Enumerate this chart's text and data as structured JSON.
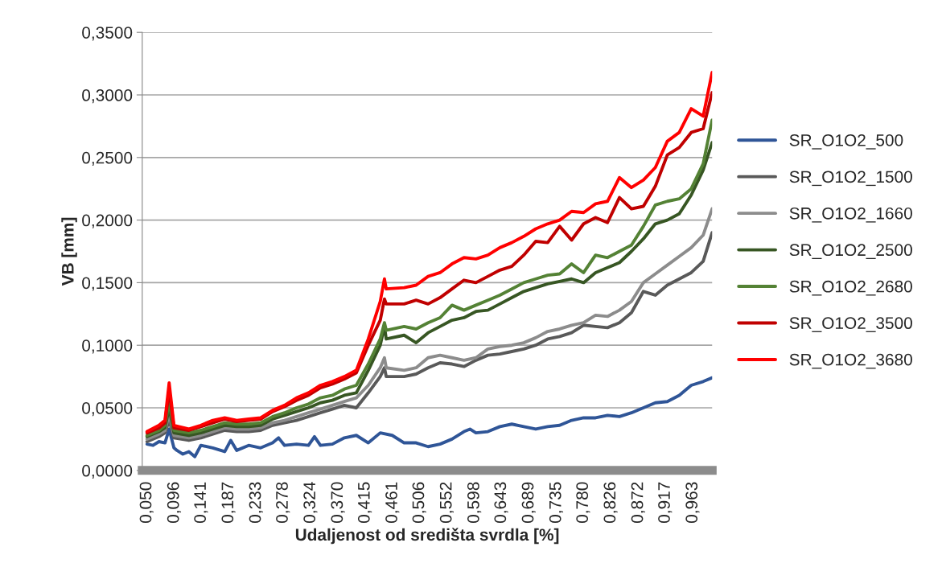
{
  "chart_data": {
    "type": "line",
    "xlabel": "Udaljenost od središta svrdla [%]",
    "ylabel": "VB [mm]",
    "x": [
      0.05,
      0.07,
      0.08,
      0.087,
      0.095,
      0.12,
      0.14,
      0.16,
      0.18,
      0.2,
      0.22,
      0.24,
      0.26,
      0.28,
      0.3,
      0.32,
      0.34,
      0.36,
      0.38,
      0.4,
      0.42,
      0.44,
      0.447,
      0.45,
      0.48,
      0.5,
      0.52,
      0.54,
      0.56,
      0.58,
      0.6,
      0.62,
      0.64,
      0.66,
      0.68,
      0.7,
      0.72,
      0.74,
      0.76,
      0.78,
      0.8,
      0.82,
      0.84,
      0.86,
      0.88,
      0.9,
      0.92,
      0.94,
      0.96,
      0.98,
      0.995
    ],
    "series": [
      {
        "name": "SR_O1O2_500",
        "color": "#2f5597",
        "x": [
          0.05,
          0.06,
          0.07,
          0.08,
          0.087,
          0.095,
          0.1,
          0.11,
          0.12,
          0.13,
          0.14,
          0.16,
          0.18,
          0.19,
          0.2,
          0.22,
          0.24,
          0.26,
          0.27,
          0.28,
          0.3,
          0.32,
          0.33,
          0.34,
          0.36,
          0.38,
          0.4,
          0.42,
          0.44,
          0.46,
          0.48,
          0.5,
          0.52,
          0.54,
          0.56,
          0.58,
          0.59,
          0.6,
          0.62,
          0.64,
          0.66,
          0.68,
          0.7,
          0.72,
          0.74,
          0.76,
          0.78,
          0.8,
          0.82,
          0.84,
          0.86,
          0.88,
          0.9,
          0.92,
          0.94,
          0.96,
          0.98,
          0.995
        ],
        "values": [
          0.021,
          0.02,
          0.023,
          0.022,
          0.033,
          0.018,
          0.016,
          0.013,
          0.015,
          0.011,
          0.02,
          0.018,
          0.015,
          0.024,
          0.016,
          0.02,
          0.018,
          0.022,
          0.026,
          0.02,
          0.021,
          0.02,
          0.027,
          0.02,
          0.021,
          0.026,
          0.028,
          0.022,
          0.03,
          0.028,
          0.022,
          0.022,
          0.019,
          0.021,
          0.025,
          0.031,
          0.033,
          0.03,
          0.031,
          0.035,
          0.037,
          0.035,
          0.033,
          0.035,
          0.036,
          0.04,
          0.042,
          0.042,
          0.044,
          0.043,
          0.046,
          0.05,
          0.054,
          0.055,
          0.06,
          0.068,
          0.071,
          0.074
        ]
      },
      {
        "name": "SR_O1O2_1500",
        "color": "#595959",
        "values": [
          0.023,
          0.027,
          0.03,
          0.04,
          0.026,
          0.024,
          0.026,
          0.029,
          0.032,
          0.031,
          0.031,
          0.032,
          0.036,
          0.038,
          0.04,
          0.043,
          0.046,
          0.049,
          0.052,
          0.05,
          0.062,
          0.075,
          0.082,
          0.075,
          0.075,
          0.077,
          0.082,
          0.086,
          0.085,
          0.083,
          0.088,
          0.092,
          0.093,
          0.095,
          0.097,
          0.1,
          0.105,
          0.107,
          0.11,
          0.116,
          0.115,
          0.114,
          0.118,
          0.126,
          0.143,
          0.14,
          0.148,
          0.153,
          0.158,
          0.167,
          0.19
        ]
      },
      {
        "name": "SR_O1O2_1660",
        "color": "#8c8c8c",
        "values": [
          0.025,
          0.029,
          0.032,
          0.045,
          0.028,
          0.026,
          0.028,
          0.031,
          0.034,
          0.033,
          0.033,
          0.034,
          0.038,
          0.04,
          0.043,
          0.046,
          0.049,
          0.052,
          0.055,
          0.058,
          0.068,
          0.082,
          0.09,
          0.082,
          0.08,
          0.082,
          0.09,
          0.092,
          0.09,
          0.088,
          0.09,
          0.097,
          0.099,
          0.1,
          0.102,
          0.106,
          0.111,
          0.113,
          0.116,
          0.118,
          0.124,
          0.123,
          0.128,
          0.135,
          0.15,
          0.157,
          0.164,
          0.171,
          0.178,
          0.188,
          0.209
        ]
      },
      {
        "name": "SR_O1O2_2500",
        "color": "#375623",
        "values": [
          0.027,
          0.031,
          0.034,
          0.05,
          0.03,
          0.028,
          0.03,
          0.033,
          0.036,
          0.035,
          0.035,
          0.036,
          0.041,
          0.044,
          0.047,
          0.05,
          0.054,
          0.056,
          0.06,
          0.062,
          0.08,
          0.1,
          0.115,
          0.105,
          0.108,
          0.102,
          0.11,
          0.115,
          0.12,
          0.122,
          0.127,
          0.128,
          0.133,
          0.138,
          0.143,
          0.146,
          0.149,
          0.151,
          0.153,
          0.15,
          0.158,
          0.162,
          0.166,
          0.175,
          0.185,
          0.197,
          0.2,
          0.205,
          0.22,
          0.24,
          0.262
        ]
      },
      {
        "name": "SR_O1O2_2680",
        "color": "#548235",
        "values": [
          0.028,
          0.032,
          0.036,
          0.055,
          0.032,
          0.03,
          0.032,
          0.035,
          0.038,
          0.037,
          0.037,
          0.038,
          0.043,
          0.046,
          0.05,
          0.053,
          0.058,
          0.06,
          0.065,
          0.068,
          0.085,
          0.105,
          0.118,
          0.112,
          0.115,
          0.113,
          0.118,
          0.122,
          0.132,
          0.128,
          0.132,
          0.136,
          0.14,
          0.145,
          0.15,
          0.153,
          0.156,
          0.157,
          0.165,
          0.158,
          0.172,
          0.17,
          0.175,
          0.18,
          0.195,
          0.212,
          0.215,
          0.217,
          0.225,
          0.245,
          0.28
        ]
      },
      {
        "name": "SR_O1O2_3500",
        "color": "#c00000",
        "values": [
          0.03,
          0.034,
          0.038,
          0.065,
          0.034,
          0.032,
          0.035,
          0.038,
          0.041,
          0.039,
          0.04,
          0.041,
          0.047,
          0.051,
          0.056,
          0.06,
          0.066,
          0.069,
          0.073,
          0.078,
          0.1,
          0.12,
          0.137,
          0.133,
          0.133,
          0.136,
          0.133,
          0.138,
          0.145,
          0.152,
          0.15,
          0.155,
          0.16,
          0.163,
          0.172,
          0.183,
          0.182,
          0.195,
          0.184,
          0.197,
          0.202,
          0.198,
          0.218,
          0.209,
          0.211,
          0.227,
          0.252,
          0.258,
          0.27,
          0.273,
          0.302
        ]
      },
      {
        "name": "SR_O1O2_3680",
        "color": "#ff0000",
        "values": [
          0.031,
          0.036,
          0.04,
          0.07,
          0.036,
          0.033,
          0.036,
          0.04,
          0.042,
          0.04,
          0.041,
          0.042,
          0.048,
          0.052,
          0.058,
          0.062,
          0.068,
          0.071,
          0.075,
          0.08,
          0.105,
          0.135,
          0.153,
          0.145,
          0.146,
          0.148,
          0.155,
          0.158,
          0.165,
          0.17,
          0.169,
          0.172,
          0.178,
          0.182,
          0.187,
          0.193,
          0.197,
          0.2,
          0.207,
          0.206,
          0.213,
          0.215,
          0.234,
          0.226,
          0.232,
          0.242,
          0.263,
          0.27,
          0.289,
          0.283,
          0.318
        ]
      }
    ],
    "xlim": [
      0.042,
      0.995
    ],
    "xticks": [
      {
        "value": 0.05,
        "label": "0,050"
      },
      {
        "value": 0.096,
        "label": "0,096"
      },
      {
        "value": 0.141,
        "label": "0,141"
      },
      {
        "value": 0.187,
        "label": "0,187"
      },
      {
        "value": 0.233,
        "label": "0,233"
      },
      {
        "value": 0.278,
        "label": "0,278"
      },
      {
        "value": 0.324,
        "label": "0,324"
      },
      {
        "value": 0.37,
        "label": "0,370"
      },
      {
        "value": 0.415,
        "label": "0,415"
      },
      {
        "value": 0.461,
        "label": "0,461"
      },
      {
        "value": 0.506,
        "label": "0,506"
      },
      {
        "value": 0.552,
        "label": "0,552"
      },
      {
        "value": 0.598,
        "label": "0,598"
      },
      {
        "value": 0.643,
        "label": "0,643"
      },
      {
        "value": 0.689,
        "label": "0,689"
      },
      {
        "value": 0.735,
        "label": "0,735"
      },
      {
        "value": 0.78,
        "label": "0,780"
      },
      {
        "value": 0.826,
        "label": "0,826"
      },
      {
        "value": 0.872,
        "label": "0,872"
      },
      {
        "value": 0.917,
        "label": "0,917"
      },
      {
        "value": 0.963,
        "label": "0,963"
      }
    ],
    "ylim": [
      0,
      0.35
    ],
    "yticks": [
      {
        "value": 0,
        "label": "0,0000"
      },
      {
        "value": 0.05,
        "label": "0,0500"
      },
      {
        "value": 0.1,
        "label": "0,1000"
      },
      {
        "value": 0.15,
        "label": "0,1500"
      },
      {
        "value": 0.2,
        "label": "0,2000"
      },
      {
        "value": 0.25,
        "label": "0,2500"
      },
      {
        "value": 0.3,
        "label": "0,3000"
      },
      {
        "value": 0.35,
        "label": "0,3500"
      }
    ],
    "grid": "y",
    "legend": "right",
    "marker": "none",
    "line_style": "solid"
  }
}
